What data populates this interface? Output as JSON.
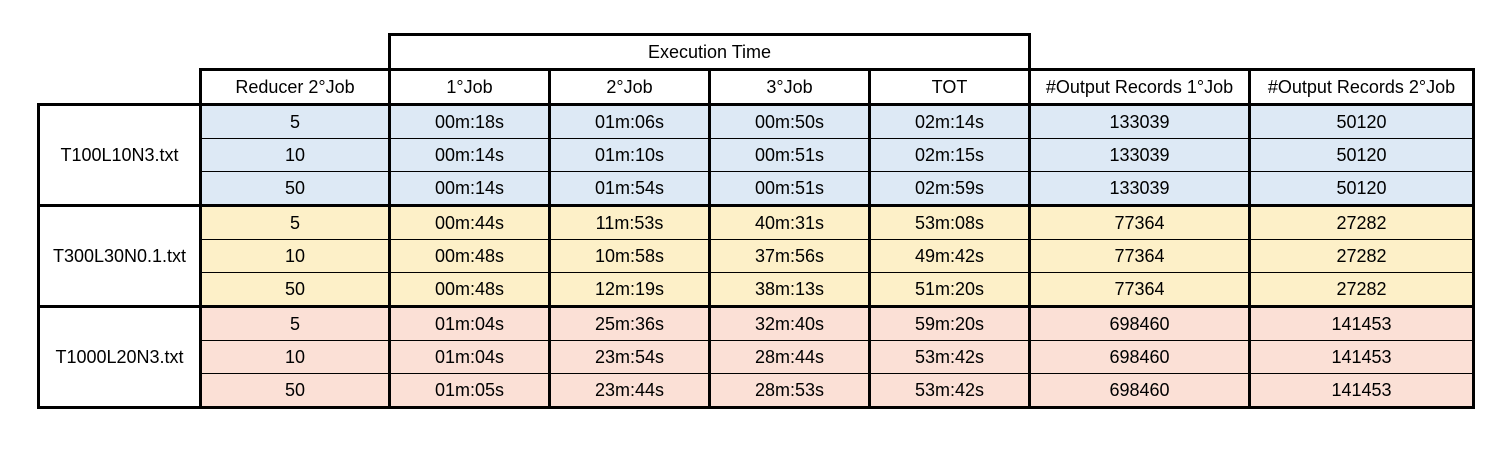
{
  "header": {
    "execution_time": "Execution Time",
    "columns": [
      "Reducer 2°Job",
      "1°Job",
      "2°Job",
      "3°Job",
      "TOT",
      "#Output Records 1°Job",
      "#Output Records 2°Job"
    ]
  },
  "groups": [
    {
      "file": "T100L10N3.txt",
      "color": "#dde9f5",
      "rows": [
        {
          "reducer": "5",
          "job1": "00m:18s",
          "job2": "01m:06s",
          "job3": "00m:50s",
          "tot": "02m:14s",
          "out1": "133039",
          "out2": "50120"
        },
        {
          "reducer": "10",
          "job1": "00m:14s",
          "job2": "01m:10s",
          "job3": "00m:51s",
          "tot": "02m:15s",
          "out1": "133039",
          "out2": "50120"
        },
        {
          "reducer": "50",
          "job1": "00m:14s",
          "job2": "01m:54s",
          "job3": "00m:51s",
          "tot": "02m:59s",
          "out1": "133039",
          "out2": "50120"
        }
      ]
    },
    {
      "file": "T300L30N0.1.txt",
      "color": "#fdf0c8",
      "rows": [
        {
          "reducer": "5",
          "job1": "00m:44s",
          "job2": "11m:53s",
          "job3": "40m:31s",
          "tot": "53m:08s",
          "out1": "77364",
          "out2": "27282"
        },
        {
          "reducer": "10",
          "job1": "00m:48s",
          "job2": "10m:58s",
          "job3": "37m:56s",
          "tot": "49m:42s",
          "out1": "77364",
          "out2": "27282"
        },
        {
          "reducer": "50",
          "job1": "00m:48s",
          "job2": "12m:19s",
          "job3": "38m:13s",
          "tot": "51m:20s",
          "out1": "77364",
          "out2": "27282"
        }
      ]
    },
    {
      "file": "T1000L20N3.txt",
      "color": "#fbe0d6",
      "rows": [
        {
          "reducer": "5",
          "job1": "01m:04s",
          "job2": "25m:36s",
          "job3": "32m:40s",
          "tot": "59m:20s",
          "out1": "698460",
          "out2": "141453"
        },
        {
          "reducer": "10",
          "job1": "01m:04s",
          "job2": "23m:54s",
          "job3": "28m:44s",
          "tot": "53m:42s",
          "out1": "698460",
          "out2": "141453"
        },
        {
          "reducer": "50",
          "job1": "01m:05s",
          "job2": "23m:44s",
          "job3": "28m:53s",
          "tot": "53m:42s",
          "out1": "698460",
          "out2": "141453"
        }
      ]
    }
  ]
}
